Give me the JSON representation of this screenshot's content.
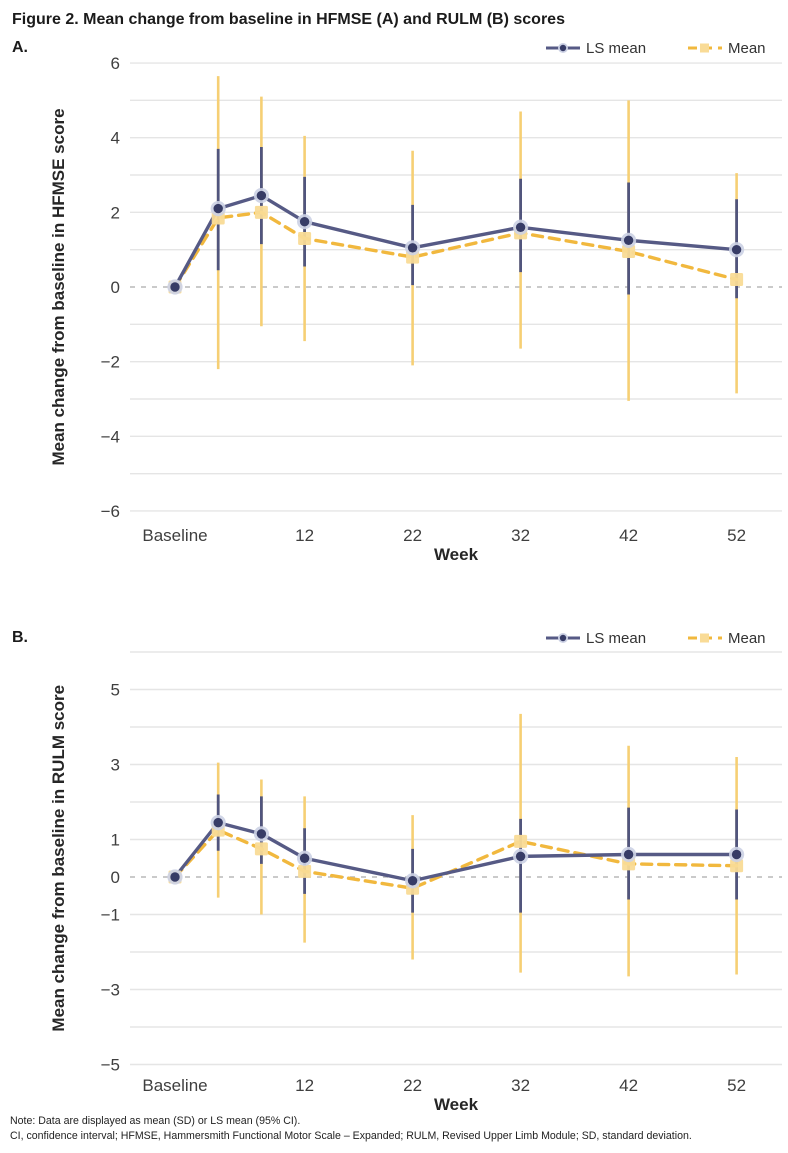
{
  "figure": {
    "title": "Figure 2. Mean change from baseline in HFMSE (A) and RULM (B) scores",
    "footnotes": [
      "Note: Data are displayed as mean (SD) or LS mean (95% CI).",
      "CI, confidence interval; HFMSE, Hammersmith Functional Motor Scale – Expanded; RULM, Revised Upper Limb Module; SD, standard deviation."
    ]
  },
  "colors": {
    "grid": "#e5e5e5",
    "zero_line": "#b9b9b9",
    "tick_text": "#3f3f3f",
    "ls_line": "#565a85",
    "ls_marker": "#373c66",
    "ls_halo": "#ccd1e4",
    "mean_line": "#f1b83e",
    "mean_marker": "#f9db96",
    "mean_error": "#f6cf74"
  },
  "chart_data": [
    {
      "type": "line",
      "panel_label": "A.",
      "xlabel": "Week",
      "ylabel": "Mean change from baseline in HFMSE score",
      "x_weeks": [
        0,
        4,
        8,
        12,
        22,
        32,
        42,
        52
      ],
      "x_tick_labels": [
        "Baseline",
        "12",
        "22",
        "32",
        "42",
        "52"
      ],
      "x_tick_weeks": [
        0,
        12,
        22,
        32,
        42,
        52
      ],
      "ylim": [
        -6,
        6
      ],
      "grid_step": 1,
      "zero_line": "dashed",
      "ytick_labels": [
        "6",
        "4",
        "2",
        "0",
        "−2",
        "−4",
        "−6"
      ],
      "ytick_values": [
        6,
        4,
        2,
        0,
        -2,
        -4,
        -6
      ],
      "legend_position": "top-right",
      "series": [
        {
          "name": "LS mean",
          "line": "solid",
          "marker": "circle",
          "error_type": "95% CI",
          "color": "#565a85",
          "marker_color": "#373c66",
          "halo_color": "#ccd1e4",
          "err_color": "#51557d",
          "values": [
            0,
            2.1,
            2.45,
            1.75,
            1.05,
            1.6,
            1.25,
            1.0
          ],
          "err_high": [
            0,
            3.7,
            3.75,
            2.95,
            2.2,
            2.9,
            2.8,
            2.35
          ],
          "err_low": [
            0,
            0.45,
            1.15,
            0.55,
            0.05,
            0.4,
            -0.2,
            -0.3
          ]
        },
        {
          "name": "Mean",
          "line": "dashed",
          "marker": "square",
          "error_type": "SD",
          "color": "#f1b83e",
          "marker_color": "#f9db96",
          "err_color": "#f6cf74",
          "values": [
            0,
            1.85,
            2.0,
            1.3,
            0.8,
            1.45,
            0.95,
            0.2
          ],
          "err_high": [
            0,
            5.65,
            5.1,
            4.05,
            3.65,
            4.7,
            5.0,
            3.05
          ],
          "err_low": [
            0,
            -2.2,
            -1.05,
            -1.45,
            -2.1,
            -1.65,
            -3.05,
            -2.85
          ]
        }
      ]
    },
    {
      "type": "line",
      "panel_label": "B.",
      "xlabel": "Week",
      "ylabel": "Mean change from baseline in RULM score",
      "x_weeks": [
        0,
        4,
        8,
        12,
        22,
        32,
        42,
        52
      ],
      "x_tick_labels": [
        "Baseline",
        "12",
        "22",
        "32",
        "42",
        "52"
      ],
      "x_tick_weeks": [
        0,
        12,
        22,
        32,
        42,
        52
      ],
      "ylim": [
        -5,
        6
      ],
      "grid_step": 1,
      "zero_line": "dashed",
      "ytick_labels": [
        "5",
        "3",
        "1",
        "0",
        "−1",
        "−3",
        "−5"
      ],
      "ytick_values": [
        5,
        3,
        1,
        0,
        -1,
        -3,
        -5
      ],
      "legend_position": "top-right",
      "series": [
        {
          "name": "LS mean",
          "line": "solid",
          "marker": "circle",
          "error_type": "95% CI",
          "color": "#565a85",
          "marker_color": "#373c66",
          "halo_color": "#ccd1e4",
          "err_color": "#51557d",
          "values": [
            0,
            1.45,
            1.15,
            0.5,
            -0.1,
            0.55,
            0.6,
            0.6
          ],
          "err_high": [
            0,
            2.2,
            2.15,
            1.3,
            0.75,
            1.55,
            1.85,
            1.8
          ],
          "err_low": [
            0,
            0.7,
            0.35,
            -0.45,
            -0.95,
            -0.95,
            -0.6,
            -0.6
          ]
        },
        {
          "name": "Mean",
          "line": "dashed",
          "marker": "square",
          "error_type": "SD",
          "color": "#f1b83e",
          "marker_color": "#f9db96",
          "err_color": "#f6cf74",
          "values": [
            0,
            1.25,
            0.75,
            0.15,
            -0.3,
            0.95,
            0.35,
            0.3
          ],
          "err_high": [
            0,
            3.05,
            2.6,
            2.15,
            1.65,
            4.35,
            3.5,
            3.2
          ],
          "err_low": [
            0,
            -0.55,
            -1.0,
            -1.75,
            -2.2,
            -2.55,
            -2.65,
            -2.6
          ]
        }
      ]
    }
  ]
}
